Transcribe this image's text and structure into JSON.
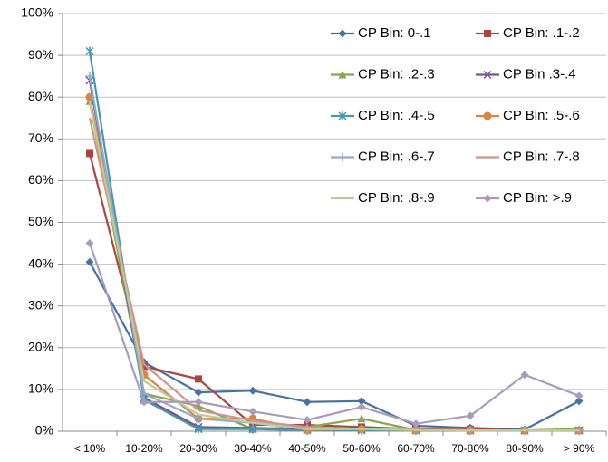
{
  "chart_data": {
    "type": "line",
    "categories": [
      "< 10%",
      "10-20%",
      "20-30%",
      "30-40%",
      "40-50%",
      "50-60%",
      "60-70%",
      "70-80%",
      "80-90%",
      "> 90%"
    ],
    "ylim": [
      0,
      100
    ],
    "yticks": [
      {
        "value": 0,
        "label": "0%"
      },
      {
        "value": 10,
        "label": "10%"
      },
      {
        "value": 20,
        "label": "20%"
      },
      {
        "value": 30,
        "label": "30%"
      },
      {
        "value": 40,
        "label": "40%"
      },
      {
        "value": 50,
        "label": "50%"
      },
      {
        "value": 60,
        "label": "60%"
      },
      {
        "value": 70,
        "label": "70%"
      },
      {
        "value": 80,
        "label": "80%"
      },
      {
        "value": 90,
        "label": "90%"
      },
      {
        "value": 100,
        "label": "100%"
      }
    ],
    "grid": true,
    "legend": "top-right",
    "series": [
      {
        "name": "CP Bin: 0-.1",
        "color": "#4572a7",
        "marker": "diamond",
        "values": [
          40.5,
          16.5,
          9.3,
          9.7,
          7.0,
          7.2,
          1.3,
          0.8,
          0.4,
          7.2
        ]
      },
      {
        "name": "CP Bin: .1-.2",
        "color": "#aa4643",
        "marker": "square",
        "values": [
          66.5,
          15.5,
          12.5,
          1.5,
          1.5,
          1.0,
          0.5,
          0.5,
          0.2,
          0.2
        ]
      },
      {
        "name": "CP Bin: .2-.3",
        "color": "#89a54e",
        "marker": "triangle",
        "values": [
          79,
          9,
          6,
          0.5,
          1,
          3,
          0.3,
          0.2,
          0.2,
          0.5
        ]
      },
      {
        "name": "CP Bin .3-.4",
        "color": "#71588f",
        "marker": "x",
        "values": [
          84,
          8,
          1,
          0.8,
          0.5,
          0.5,
          0.2,
          0.2,
          0.2,
          0.2
        ]
      },
      {
        "name": "CP Bin: .4-.5",
        "color": "#4198af",
        "marker": "star",
        "values": [
          91,
          7.5,
          0.5,
          0.5,
          0.2,
          0.2,
          0.2,
          0.2,
          0.2,
          0.2
        ]
      },
      {
        "name": "CP Bin: .5-.6",
        "color": "#db843d",
        "marker": "circle",
        "values": [
          80,
          13.5,
          3,
          3,
          0.3,
          0.5,
          0.2,
          0.2,
          0.2,
          0.2
        ]
      },
      {
        "name": "CP Bin: .6-.7",
        "color": "#93a9cf",
        "marker": "plus",
        "values": [
          85,
          9,
          3,
          2,
          0.5,
          0.5,
          0.3,
          0.2,
          0.2,
          0.2
        ]
      },
      {
        "name": "CP Bin: .7-.8",
        "color": "#d19392",
        "marker": "none",
        "values": [
          75,
          16,
          5,
          2.5,
          1,
          0.5,
          0.3,
          0.2,
          0.2,
          0.2
        ]
      },
      {
        "name": "CP Bin: .8-.9",
        "color": "#b9cd96",
        "marker": "none",
        "values": [
          79,
          12,
          4,
          2,
          0.5,
          0.5,
          0.3,
          0.2,
          0.2,
          0.2
        ]
      },
      {
        "name": "CP Bin: >.9",
        "color": "#a99bbd",
        "marker": "diamond",
        "values": [
          45,
          7,
          7,
          4.7,
          2.7,
          5.8,
          1.8,
          3.7,
          13.5,
          8.5
        ]
      }
    ]
  }
}
